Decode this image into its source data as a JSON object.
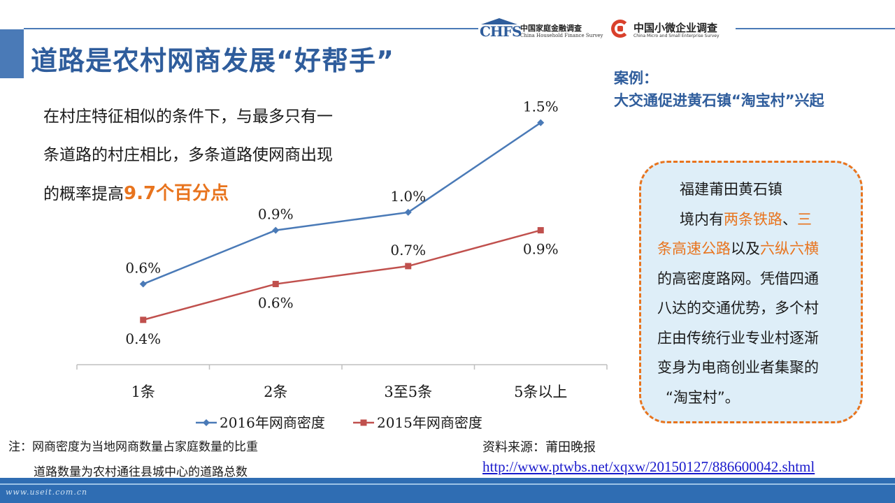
{
  "header": {
    "title": "道路是农村网商发展“好帮手”",
    "logo_chfs": {
      "abbr": "CHFS",
      "cn": "中国家庭金融调查",
      "en": "China Household Finance Survey"
    },
    "logo_small": {
      "cn": "中国小微企业调查",
      "en": "China Micro and Small Enterprise Survey"
    }
  },
  "intro": {
    "line1": "在村庄特征相似的条件下，与最多只有一",
    "line2": "条道路的村庄相比，多条道路使网商出现",
    "line3_prefix": "的概率提高",
    "highlight": "9.7个百分点"
  },
  "chart_data": {
    "type": "line",
    "categories": [
      "1条",
      "2条",
      "3至5条",
      "5条以上"
    ],
    "series": [
      {
        "name": "2016年网商密度",
        "values": [
          0.6,
          0.9,
          1.0,
          1.5
        ],
        "labels": [
          "0.6%",
          "0.9%",
          "1.0%",
          "1.5%"
        ],
        "color": "#4a7ab7",
        "marker": "diamond"
      },
      {
        "name": "2015年网商密度",
        "values": [
          0.4,
          0.6,
          0.7,
          0.9
        ],
        "labels": [
          "0.4%",
          "0.6%",
          "0.7%",
          "0.9%"
        ],
        "color": "#c0504d",
        "marker": "square"
      }
    ],
    "ylim": [
      0.15,
      1.6
    ],
    "legend": "bottom",
    "grid": false
  },
  "case": {
    "title_line1": "案例：",
    "title_line2": "大交通促进黄石镇“淘宝村”兴起",
    "p1": "福建莆田黄石镇",
    "p2_a": "境内有",
    "p2_b": "两条铁路",
    "p2_c": "、",
    "p2_d": "三",
    "p3_a": "条高速公路",
    "p3_b": "以及",
    "p3_c": "六纵六横",
    "p4": "的高密度路网。凭借四通",
    "p5": "八达的交通优势，多个村",
    "p6": "庄由传统行业专业村逐渐",
    "p7": "变身为电商创业者集聚的",
    "p8": "“淘宝村”。"
  },
  "notes": {
    "line1": "注：网商密度为当地网商数量占家庭数量的比重",
    "line2": "道路数量为农村通往县城中心的道路总数"
  },
  "source": {
    "label": "资料来源：莆田晚报",
    "url": "http://www.ptwbs.net/xqxw/20150127/886600042.shtml"
  },
  "footer": {
    "watermark": "www.useit.com.cn"
  },
  "colors": {
    "accent": "#2f5d9c",
    "orange": "#e8741e",
    "band": "#2f6db3"
  }
}
